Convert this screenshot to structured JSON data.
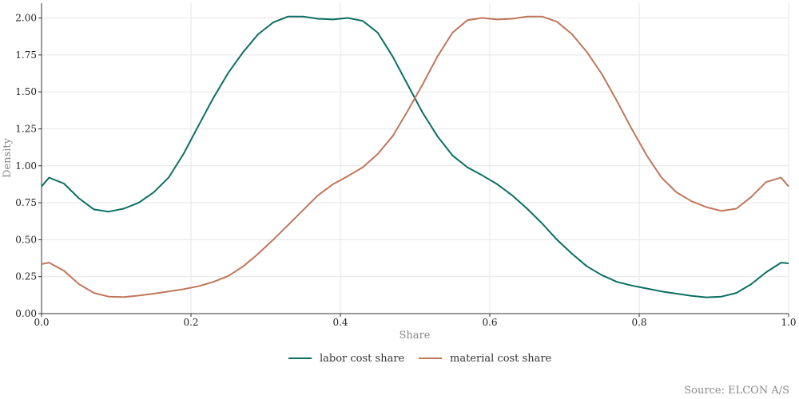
{
  "chart_data": {
    "type": "line",
    "xlabel": "Share",
    "ylabel": "Density",
    "xlim": [
      0,
      1
    ],
    "ylim": [
      0,
      2.1
    ],
    "x_ticks": [
      "0.0",
      "0.2",
      "0.4",
      "0.6",
      "0.8",
      "1.0"
    ],
    "y_ticks": [
      "0.00",
      "0.25",
      "0.50",
      "0.75",
      "1.00",
      "1.25",
      "1.50",
      "1.75",
      "2.00"
    ],
    "grid": true,
    "legend_position": "bottom-center",
    "source": "Source: ELCON A/S",
    "series": [
      {
        "name": "labor cost share",
        "color": "#0b6e63",
        "x": [
          0.0,
          0.01,
          0.03,
          0.05,
          0.07,
          0.09,
          0.11,
          0.13,
          0.15,
          0.17,
          0.19,
          0.21,
          0.23,
          0.25,
          0.27,
          0.29,
          0.31,
          0.33,
          0.35,
          0.37,
          0.39,
          0.41,
          0.43,
          0.45,
          0.47,
          0.49,
          0.51,
          0.53,
          0.55,
          0.57,
          0.59,
          0.61,
          0.63,
          0.65,
          0.67,
          0.69,
          0.71,
          0.73,
          0.75,
          0.77,
          0.79,
          0.81,
          0.83,
          0.85,
          0.87,
          0.89,
          0.91,
          0.93,
          0.95,
          0.97,
          0.99,
          1.0
        ],
        "y": [
          0.86,
          0.92,
          0.88,
          0.78,
          0.705,
          0.69,
          0.71,
          0.75,
          0.82,
          0.92,
          1.08,
          1.27,
          1.46,
          1.63,
          1.77,
          1.89,
          1.97,
          2.01,
          2.01,
          1.995,
          1.99,
          2.0,
          1.98,
          1.9,
          1.74,
          1.55,
          1.36,
          1.2,
          1.07,
          0.99,
          0.935,
          0.875,
          0.8,
          0.71,
          0.61,
          0.5,
          0.405,
          0.32,
          0.26,
          0.215,
          0.19,
          0.17,
          0.15,
          0.135,
          0.12,
          0.11,
          0.115,
          0.14,
          0.2,
          0.28,
          0.345,
          0.34
        ]
      },
      {
        "name": "material cost share",
        "color": "#c0775a",
        "x": [
          0.0,
          0.01,
          0.03,
          0.05,
          0.07,
          0.09,
          0.11,
          0.13,
          0.15,
          0.17,
          0.19,
          0.21,
          0.23,
          0.25,
          0.27,
          0.29,
          0.31,
          0.33,
          0.35,
          0.37,
          0.39,
          0.41,
          0.43,
          0.45,
          0.47,
          0.49,
          0.51,
          0.53,
          0.55,
          0.57,
          0.59,
          0.61,
          0.63,
          0.65,
          0.67,
          0.69,
          0.71,
          0.73,
          0.75,
          0.77,
          0.79,
          0.81,
          0.83,
          0.85,
          0.87,
          0.89,
          0.91,
          0.93,
          0.95,
          0.97,
          0.99,
          1.0
        ],
        "y": [
          0.335,
          0.345,
          0.29,
          0.2,
          0.14,
          0.115,
          0.112,
          0.122,
          0.135,
          0.15,
          0.165,
          0.185,
          0.215,
          0.255,
          0.32,
          0.405,
          0.5,
          0.6,
          0.7,
          0.8,
          0.875,
          0.93,
          0.99,
          1.08,
          1.2,
          1.37,
          1.55,
          1.74,
          1.9,
          1.985,
          2.0,
          1.99,
          1.995,
          2.01,
          2.01,
          1.975,
          1.89,
          1.77,
          1.62,
          1.44,
          1.25,
          1.07,
          0.92,
          0.82,
          0.76,
          0.72,
          0.695,
          0.71,
          0.79,
          0.89,
          0.92,
          0.86
        ]
      }
    ]
  }
}
